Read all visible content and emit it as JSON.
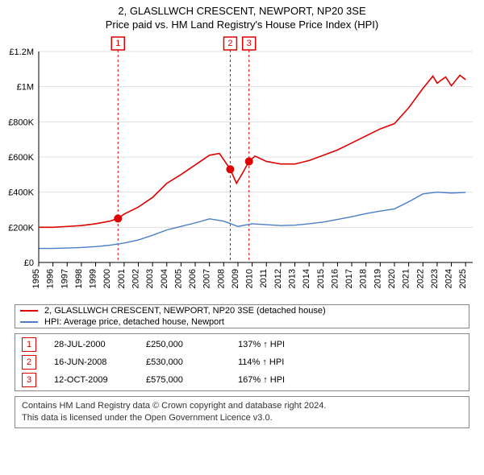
{
  "title_line1": "2, GLASLLWCH CRESCENT, NEWPORT, NP20 3SE",
  "title_line2": "Price paid vs. HM Land Registry's House Price Index (HPI)",
  "chart": {
    "type": "line",
    "background_color": "#ffffff",
    "grid_color": "#e0e0e0",
    "axis_color": "#000000",
    "label_fontsize": 11,
    "y": {
      "min": 0,
      "max": 1200000,
      "ticks": [
        0,
        200000,
        400000,
        600000,
        800000,
        1000000,
        1200000
      ],
      "tick_labels": [
        "£0",
        "£200K",
        "£400K",
        "£600K",
        "£800K",
        "£1M",
        "£1.2M"
      ]
    },
    "x": {
      "min": 1995,
      "max": 2025.5,
      "ticks": [
        1995,
        1996,
        1997,
        1998,
        1999,
        2000,
        2001,
        2002,
        2003,
        2004,
        2005,
        2006,
        2007,
        2008,
        2009,
        2010,
        2011,
        2012,
        2013,
        2014,
        2015,
        2016,
        2017,
        2018,
        2019,
        2020,
        2021,
        2022,
        2023,
        2024,
        2025
      ]
    },
    "series": [
      {
        "name": "2, GLASLLWCH CRESCENT, NEWPORT, NP20 3SE (detached house)",
        "color": "#e00000",
        "line_width": 1.6,
        "points": [
          [
            1995,
            200000
          ],
          [
            1996,
            200000
          ],
          [
            1997,
            205000
          ],
          [
            1998,
            210000
          ],
          [
            1999,
            220000
          ],
          [
            2000,
            235000
          ],
          [
            2000.57,
            250000
          ],
          [
            2001,
            275000
          ],
          [
            2002,
            315000
          ],
          [
            2003,
            370000
          ],
          [
            2004,
            450000
          ],
          [
            2005,
            500000
          ],
          [
            2006,
            555000
          ],
          [
            2007,
            610000
          ],
          [
            2007.7,
            620000
          ],
          [
            2008,
            585000
          ],
          [
            2008.46,
            530000
          ],
          [
            2008.9,
            450000
          ],
          [
            2009.3,
            505000
          ],
          [
            2009.78,
            575000
          ],
          [
            2010.2,
            605000
          ],
          [
            2011,
            575000
          ],
          [
            2012,
            560000
          ],
          [
            2013,
            560000
          ],
          [
            2014,
            580000
          ],
          [
            2015,
            610000
          ],
          [
            2016,
            640000
          ],
          [
            2017,
            680000
          ],
          [
            2018,
            720000
          ],
          [
            2019,
            760000
          ],
          [
            2020,
            790000
          ],
          [
            2021,
            880000
          ],
          [
            2022,
            990000
          ],
          [
            2022.7,
            1060000
          ],
          [
            2023,
            1020000
          ],
          [
            2023.6,
            1055000
          ],
          [
            2024,
            1005000
          ],
          [
            2024.6,
            1065000
          ],
          [
            2025,
            1040000
          ]
        ]
      },
      {
        "name": "HPI: Average price, detached house, Newport",
        "color": "#4a7ec8",
        "line_width": 1.4,
        "points": [
          [
            1995,
            80000
          ],
          [
            1996,
            80000
          ],
          [
            1997,
            82000
          ],
          [
            1998,
            85000
          ],
          [
            1999,
            90000
          ],
          [
            2000,
            98000
          ],
          [
            2001,
            110000
          ],
          [
            2002,
            128000
          ],
          [
            2003,
            155000
          ],
          [
            2004,
            185000
          ],
          [
            2005,
            205000
          ],
          [
            2006,
            225000
          ],
          [
            2007,
            248000
          ],
          [
            2008,
            235000
          ],
          [
            2009,
            205000
          ],
          [
            2010,
            220000
          ],
          [
            2011,
            215000
          ],
          [
            2012,
            210000
          ],
          [
            2013,
            212000
          ],
          [
            2014,
            220000
          ],
          [
            2015,
            230000
          ],
          [
            2016,
            245000
          ],
          [
            2017,
            260000
          ],
          [
            2018,
            278000
          ],
          [
            2019,
            292000
          ],
          [
            2020,
            305000
          ],
          [
            2021,
            345000
          ],
          [
            2022,
            390000
          ],
          [
            2023,
            400000
          ],
          [
            2024,
            395000
          ],
          [
            2025,
            398000
          ]
        ]
      }
    ],
    "sale_markers": [
      {
        "n": "1",
        "year": 2000.57,
        "value": 250000
      },
      {
        "n": "2",
        "year": 2008.46,
        "value": 530000
      },
      {
        "n": "3",
        "year": 2009.78,
        "value": 575000
      }
    ],
    "marker_color": "#e00000",
    "marker_radius": 5
  },
  "legend": [
    {
      "color": "#e00000",
      "label": "2, GLASLLWCH CRESCENT, NEWPORT, NP20 3SE (detached house)"
    },
    {
      "color": "#4a7ec8",
      "label": "HPI: Average price, detached house, Newport"
    }
  ],
  "sales": [
    {
      "n": "1",
      "date": "28-JUL-2000",
      "price": "£250,000",
      "hpi": "137% ↑ HPI"
    },
    {
      "n": "2",
      "date": "16-JUN-2008",
      "price": "£530,000",
      "hpi": "114% ↑ HPI"
    },
    {
      "n": "3",
      "date": "12-OCT-2009",
      "price": "£575,000",
      "hpi": "167% ↑ HPI"
    }
  ],
  "footer_line1": "Contains HM Land Registry data © Crown copyright and database right 2024.",
  "footer_line2": "This data is licensed under the Open Government Licence v3.0."
}
